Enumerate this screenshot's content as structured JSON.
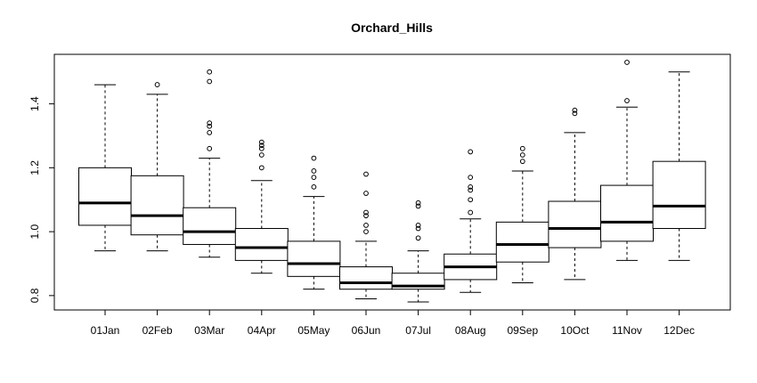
{
  "chart_data": {
    "type": "boxplot",
    "title": "Orchard_Hills",
    "xlabel": "",
    "ylabel": "",
    "categories": [
      "01Jan",
      "02Feb",
      "03Mar",
      "04Apr",
      "05May",
      "06Jun",
      "07Jul",
      "08Aug",
      "09Sep",
      "10Oct",
      "11Nov",
      "12Dec"
    ],
    "ylim": [
      0.755,
      1.555
    ],
    "yticks": [
      0.8,
      1.0,
      1.2,
      1.4
    ],
    "ytick_labels": [
      "0.8",
      "1.0",
      "1.2",
      "1.4"
    ],
    "grid": false,
    "legend": "none",
    "boxes": [
      {
        "category": "01Jan",
        "whisker_low": 0.94,
        "q1": 1.02,
        "median": 1.09,
        "q3": 1.2,
        "whisker_high": 1.46,
        "outliers": []
      },
      {
        "category": "02Feb",
        "whisker_low": 0.94,
        "q1": 0.99,
        "median": 1.05,
        "q3": 1.175,
        "whisker_high": 1.43,
        "outliers": [
          1.46
        ]
      },
      {
        "category": "03Mar",
        "whisker_low": 0.92,
        "q1": 0.96,
        "median": 1.0,
        "q3": 1.075,
        "whisker_high": 1.23,
        "outliers": [
          1.26,
          1.31,
          1.33,
          1.34,
          1.47,
          1.5
        ]
      },
      {
        "category": "04Apr",
        "whisker_low": 0.87,
        "q1": 0.91,
        "median": 0.95,
        "q3": 1.01,
        "whisker_high": 1.16,
        "outliers": [
          1.2,
          1.24,
          1.26,
          1.27,
          1.28
        ]
      },
      {
        "category": "05May",
        "whisker_low": 0.82,
        "q1": 0.86,
        "median": 0.9,
        "q3": 0.97,
        "whisker_high": 1.11,
        "outliers": [
          1.14,
          1.17,
          1.19,
          1.23
        ]
      },
      {
        "category": "06Jun",
        "whisker_low": 0.79,
        "q1": 0.82,
        "median": 0.84,
        "q3": 0.89,
        "whisker_high": 0.97,
        "outliers": [
          1.0,
          1.02,
          1.05,
          1.06,
          1.12,
          1.18
        ]
      },
      {
        "category": "07Jul",
        "whisker_low": 0.78,
        "q1": 0.82,
        "median": 0.83,
        "q3": 0.87,
        "whisker_high": 0.94,
        "outliers": [
          0.98,
          1.01,
          1.02,
          1.08,
          1.09
        ]
      },
      {
        "category": "08Aug",
        "whisker_low": 0.81,
        "q1": 0.85,
        "median": 0.89,
        "q3": 0.93,
        "whisker_high": 1.04,
        "outliers": [
          1.06,
          1.1,
          1.13,
          1.14,
          1.17,
          1.25
        ]
      },
      {
        "category": "09Sep",
        "whisker_low": 0.84,
        "q1": 0.905,
        "median": 0.96,
        "q3": 1.03,
        "whisker_high": 1.19,
        "outliers": [
          1.22,
          1.24,
          1.26
        ]
      },
      {
        "category": "10Oct",
        "whisker_low": 0.85,
        "q1": 0.95,
        "median": 1.01,
        "q3": 1.095,
        "whisker_high": 1.31,
        "outliers": [
          1.37,
          1.38
        ]
      },
      {
        "category": "11Nov",
        "whisker_low": 0.91,
        "q1": 0.97,
        "median": 1.03,
        "q3": 1.145,
        "whisker_high": 1.39,
        "outliers": [
          1.41,
          1.53
        ]
      },
      {
        "category": "12Dec",
        "whisker_low": 0.91,
        "q1": 1.01,
        "median": 1.08,
        "q3": 1.22,
        "whisker_high": 1.5,
        "outliers": []
      }
    ],
    "colors": {
      "line": "#000000",
      "box_fill": "#ffffff",
      "background": "#ffffff"
    }
  }
}
